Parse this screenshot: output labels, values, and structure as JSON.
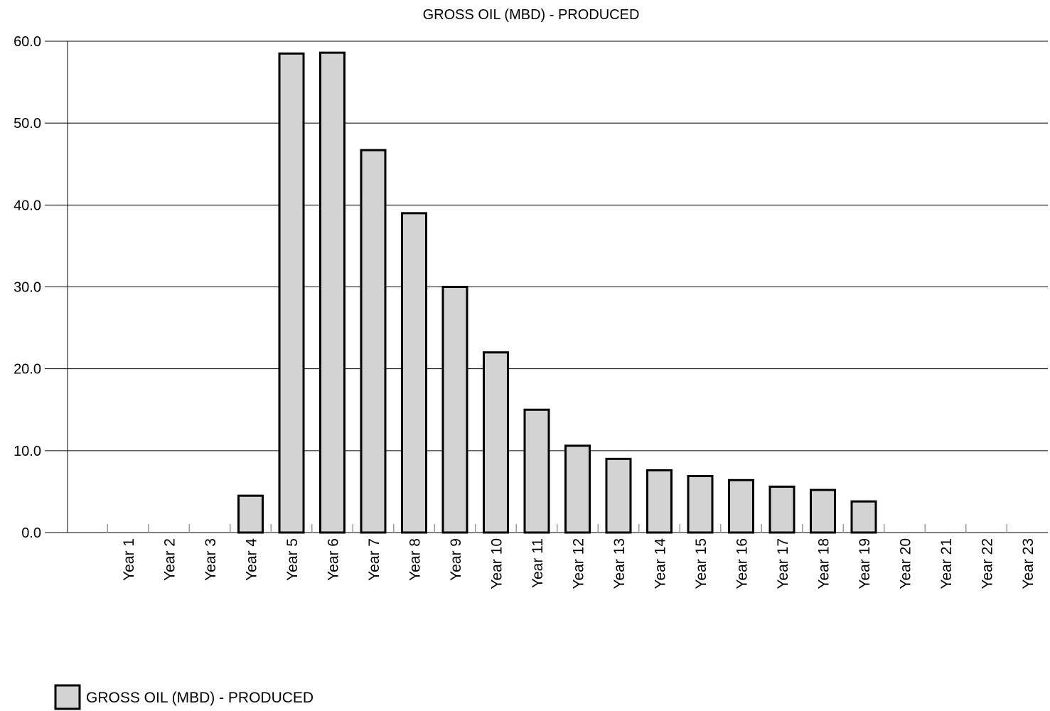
{
  "chart_data": {
    "type": "bar",
    "title": "GROSS OIL (MBD) - PRODUCED",
    "categories": [
      "Year 1",
      "Year 2",
      "Year 3",
      "Year 4",
      "Year 5",
      "Year 6",
      "Year 7",
      "Year 8",
      "Year 9",
      "Year 10",
      "Year 11",
      "Year 12",
      "Year 13",
      "Year 14",
      "Year 15",
      "Year 16",
      "Year 17",
      "Year 18",
      "Year 19",
      "Year 20",
      "Year 21",
      "Year 22",
      "Year 23"
    ],
    "series": [
      {
        "name": "GROSS OIL (MBD) - PRODUCED",
        "values": [
          0,
          0,
          0,
          4.5,
          58.5,
          58.6,
          46.7,
          39.0,
          30.0,
          22.0,
          15.0,
          10.6,
          9.0,
          7.6,
          6.9,
          6.4,
          5.6,
          5.2,
          3.8,
          0,
          0,
          0,
          0
        ]
      }
    ],
    "yticks": [
      "0.0",
      "10.0",
      "20.0",
      "30.0",
      "40.0",
      "50.0",
      "60.0"
    ],
    "ylim": [
      0,
      60
    ],
    "grid": true,
    "legend": "bottom-left",
    "colors": {
      "bar_fill": "#d3d3d3",
      "bar_stroke": "#000000"
    }
  }
}
